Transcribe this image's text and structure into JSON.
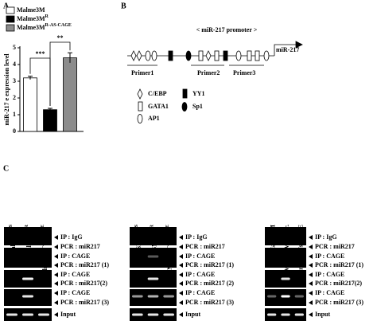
{
  "chart_data": {
    "type": "bar",
    "panel": "A",
    "y_label": "miR-217 e expression level",
    "series": [
      {
        "name": "Malme3M",
        "color": "#ffffff",
        "values": [
          3.2
        ],
        "errors": [
          0.1
        ]
      },
      {
        "name": "Malme3M",
        "sup": "R",
        "color": "#000000",
        "values": [
          1.3
        ],
        "errors": [
          0.08
        ]
      },
      {
        "name": "Malme3M",
        "sup": "R-AS-CAGE",
        "color": "#8c8c8c",
        "values": [
          4.4
        ],
        "errors": [
          0.3
        ]
      }
    ],
    "ylim": [
      0,
      5
    ],
    "yticks": [
      0,
      1,
      2,
      3,
      4,
      5
    ],
    "annotations": [
      {
        "text": "***",
        "between": [
          0,
          1
        ]
      },
      {
        "text": "**",
        "between": [
          1,
          2
        ]
      }
    ]
  },
  "diagram": {
    "panel": "B",
    "title": "< miR-217 promoter >",
    "gene": "miR-217",
    "primers": [
      "Primer1",
      "Primer2",
      "Primer3"
    ],
    "legend": [
      "C/EBP",
      "YY1",
      "GATA1",
      "Sp1",
      "AP1"
    ]
  },
  "gels": {
    "panel": "C",
    "blots": [
      {
        "columns": [
          {
            "name": "Malme3M",
            "sup": "S"
          },
          {
            "name": "Malme3M",
            "sup": "R"
          },
          {
            "name": "Malme3M",
            "sup": "R-AS-CAGE"
          }
        ],
        "rows": [
          "IP : IgG",
          "PCR : miR217",
          "IP : CAGE",
          "PCR : miR217 (1)",
          "IP : CAGE",
          "PCR : miR217(2)",
          "IP : CAGE",
          "PCR : miR217 (3)",
          "Input"
        ]
      },
      {
        "columns": [
          {
            "name": "SNU387",
            "sup": "S"
          },
          {
            "name": "SNU387",
            "sup": "R"
          },
          {
            "name": "SNU387",
            "sup": "R-AS-CAGE"
          }
        ],
        "rows": [
          "IP : IgG",
          "PCR : miR217",
          "IP : CAGE",
          "PCR : miR217 (1)",
          "IP : CAGE",
          "PCR : miR217 (2)",
          "IP : CAGE",
          "PCR : miR217 (3)",
          "Input"
        ]
      },
      {
        "columns": [
          {
            "name": "Malme3M"
          },
          {
            "name": "Malme3M",
            "sup": "R",
            "suffix": " / Scr."
          },
          {
            "name": "Malme3M",
            "sup": "R",
            "suffix": "/siCAGE"
          }
        ],
        "rows": [
          "IP : IgG",
          "PCR : miR217",
          "IP : CAGE",
          "PCR : miR217 (1)",
          "IP : CAGE",
          "PCR : miR217(2)",
          "IP : CAGE",
          "PCR : miR217 (3)",
          "Input"
        ]
      }
    ]
  }
}
